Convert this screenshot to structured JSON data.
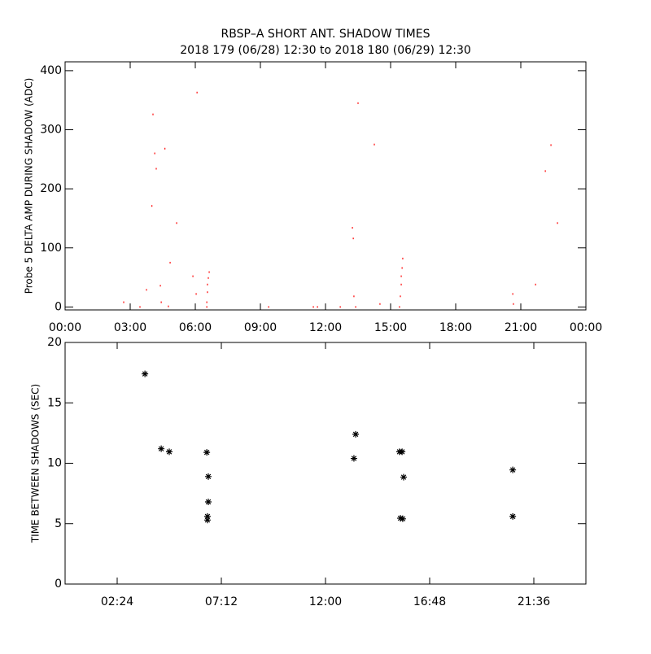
{
  "chart_data": [
    {
      "type": "scatter",
      "title": "RBSP–A SHORT ANT. SHADOW TIMES",
      "subtitle": "2018 179 (06/28) 12:30 to 2018 180 (06/29) 12:30",
      "y_label": "Probe 5 DELTA AMP DURING SHADOW (ADC)",
      "color": "#ff0000",
      "x": [
        2.7,
        3.45,
        3.75,
        4.05,
        4.13,
        4.2,
        4.6,
        4.0,
        5.14,
        4.84,
        4.39,
        4.43,
        4.76,
        5.89,
        6.08,
        6.04,
        6.53,
        6.53,
        6.56,
        6.56,
        6.6,
        6.64,
        9.38,
        11.44,
        11.63,
        12.68,
        13.24,
        13.28,
        13.31,
        13.39,
        13.5,
        14.25,
        14.51,
        15.41,
        15.45,
        15.49,
        15.49,
        15.53,
        15.56,
        20.63,
        20.66,
        21.68,
        22.13,
        22.39,
        22.69
      ],
      "values": [
        8,
        0,
        29,
        326,
        260,
        234,
        268,
        171,
        142,
        75,
        36,
        8,
        1,
        52,
        363,
        22,
        0,
        8,
        25,
        38,
        49,
        59,
        0,
        0,
        0,
        0,
        134,
        116,
        18,
        0,
        345,
        275,
        5,
        0,
        18,
        38,
        52,
        66,
        82,
        22,
        5,
        38,
        230,
        274,
        142
      ],
      "xlim": [
        0,
        24
      ],
      "xticks": [
        {
          "value": 0,
          "label": "00:00"
        },
        {
          "value": 3,
          "label": "03:00"
        },
        {
          "value": 6,
          "label": "06:00"
        },
        {
          "value": 9,
          "label": "09:00"
        },
        {
          "value": 12,
          "label": "12:00"
        },
        {
          "value": 15,
          "label": "15:00"
        },
        {
          "value": 18,
          "label": "18:00"
        },
        {
          "value": 21,
          "label": "21:00"
        },
        {
          "value": 24,
          "label": "00:00"
        }
      ],
      "ylim": [
        -5,
        415
      ],
      "yticks": [
        0,
        100,
        200,
        300,
        400
      ]
    },
    {
      "type": "scatter",
      "y_label": "TIME BETWEEN SHADOWS (SEC)",
      "color": "#000000",
      "x": [
        3.68,
        4.43,
        4.8,
        6.53,
        6.6,
        6.6,
        6.56,
        6.56,
        13.31,
        13.39,
        15.41,
        15.53,
        15.6,
        15.45,
        15.56,
        20.63,
        20.63
      ],
      "values": [
        17.4,
        11.2,
        10.95,
        10.9,
        8.9,
        6.8,
        5.6,
        5.3,
        10.4,
        12.4,
        10.95,
        10.95,
        8.85,
        5.45,
        5.4,
        9.45,
        5.6
      ],
      "xlim": [
        0,
        24
      ],
      "xticks": [
        {
          "value": 2.4,
          "label": "02:24"
        },
        {
          "value": 7.2,
          "label": "07:12"
        },
        {
          "value": 12,
          "label": "12:00"
        },
        {
          "value": 16.8,
          "label": "16:48"
        },
        {
          "value": 21.6,
          "label": "21:36"
        }
      ],
      "ylim": [
        0,
        20
      ],
      "yticks": [
        0,
        5,
        10,
        15,
        20
      ]
    }
  ]
}
